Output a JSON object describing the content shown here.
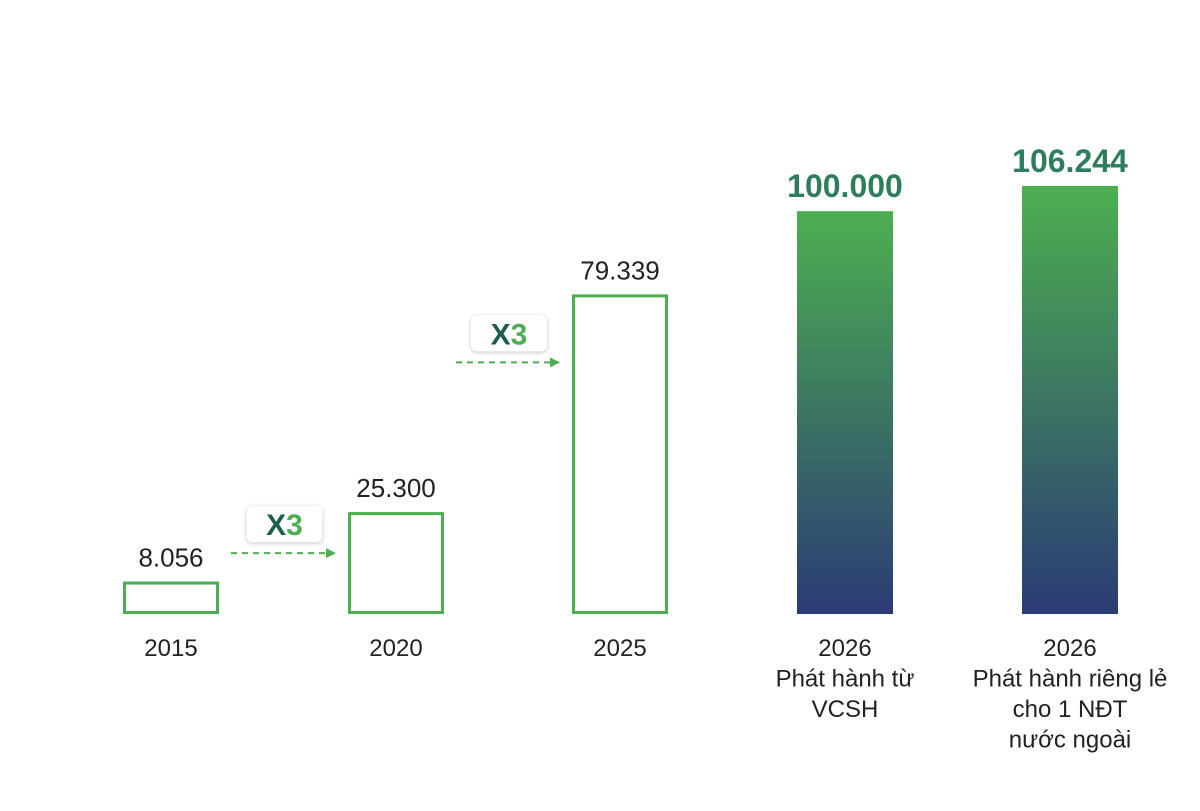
{
  "chart_data": {
    "type": "bar",
    "title": "",
    "xlabel": "",
    "ylabel": "",
    "ylim": [
      0,
      106244
    ],
    "categories": [
      [
        "2015"
      ],
      [
        "2020"
      ],
      [
        "2025"
      ],
      [
        "2026",
        "Phát hành từ",
        "VCSH"
      ],
      [
        "2026",
        "Phát hành riêng lẻ",
        "cho 1 NĐT",
        "nước ngoài"
      ]
    ],
    "values": [
      8056,
      25300,
      79339,
      100000,
      106244
    ],
    "value_labels": [
      "8.056",
      "25.300",
      "79.339",
      "100.000",
      "106.244"
    ],
    "bar_styles": [
      "outline",
      "outline",
      "outline",
      "gradient",
      "gradient"
    ],
    "grid": false,
    "legend": "none",
    "annotations": [
      {
        "text": "X3",
        "from_category": "2015",
        "to_category": "2020"
      },
      {
        "text": "X3",
        "from_category": "2020",
        "to_category": "2025"
      }
    ]
  },
  "colors": {
    "outline_bar": "#4caf50",
    "outline_fill": "#ffffff",
    "gradient_top": "#4caf50",
    "gradient_bottom": "#2b3b75",
    "bold_value": "#2e7d5b",
    "multiplier_x": "#1f5e4e",
    "multiplier_digit": "#4caf50",
    "arrow": "#4caf50"
  }
}
